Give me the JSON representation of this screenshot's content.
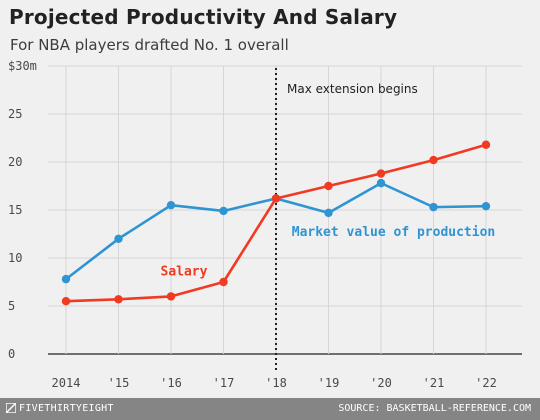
{
  "header": {
    "title": "Projected Productivity And Salary",
    "subtitle": "For NBA players drafted No. 1 overall"
  },
  "footer": {
    "brand": "FIVETHIRTYEIGHT",
    "source": "SOURCE: BASKETBALL-REFERENCE.COM"
  },
  "colors": {
    "salary": "#f03a22",
    "market": "#2f94d2",
    "grid": "#d6d6d6",
    "axis_text": "#4a4a4a"
  },
  "chart_data": {
    "type": "line",
    "title": "Projected Productivity And Salary",
    "subtitle": "For NBA players drafted No. 1 overall",
    "xlabel": "",
    "ylabel": "",
    "x": [
      2014,
      2015,
      2016,
      2017,
      2018,
      2019,
      2020,
      2021,
      2022
    ],
    "x_tick_labels": [
      "2014",
      "'15",
      "'16",
      "'17",
      "'18",
      "'19",
      "'20",
      "'21",
      "'22"
    ],
    "y_ticks": [
      0,
      5,
      10,
      15,
      20,
      25,
      30
    ],
    "y_tick_labels": [
      "0",
      "5",
      "10",
      "15",
      "20",
      "25",
      "$30m"
    ],
    "ylim": [
      0,
      30
    ],
    "grid": true,
    "series": [
      {
        "name": "Market value of production",
        "values": [
          7.8,
          12.0,
          15.5,
          14.9,
          16.2,
          14.7,
          17.8,
          15.3,
          15.4
        ]
      },
      {
        "name": "Salary",
        "values": [
          5.5,
          5.7,
          6.0,
          7.5,
          16.2,
          17.5,
          18.8,
          20.2,
          21.8
        ]
      }
    ],
    "annotations": [
      {
        "text": "Max extension begins",
        "x": 2018
      }
    ]
  }
}
